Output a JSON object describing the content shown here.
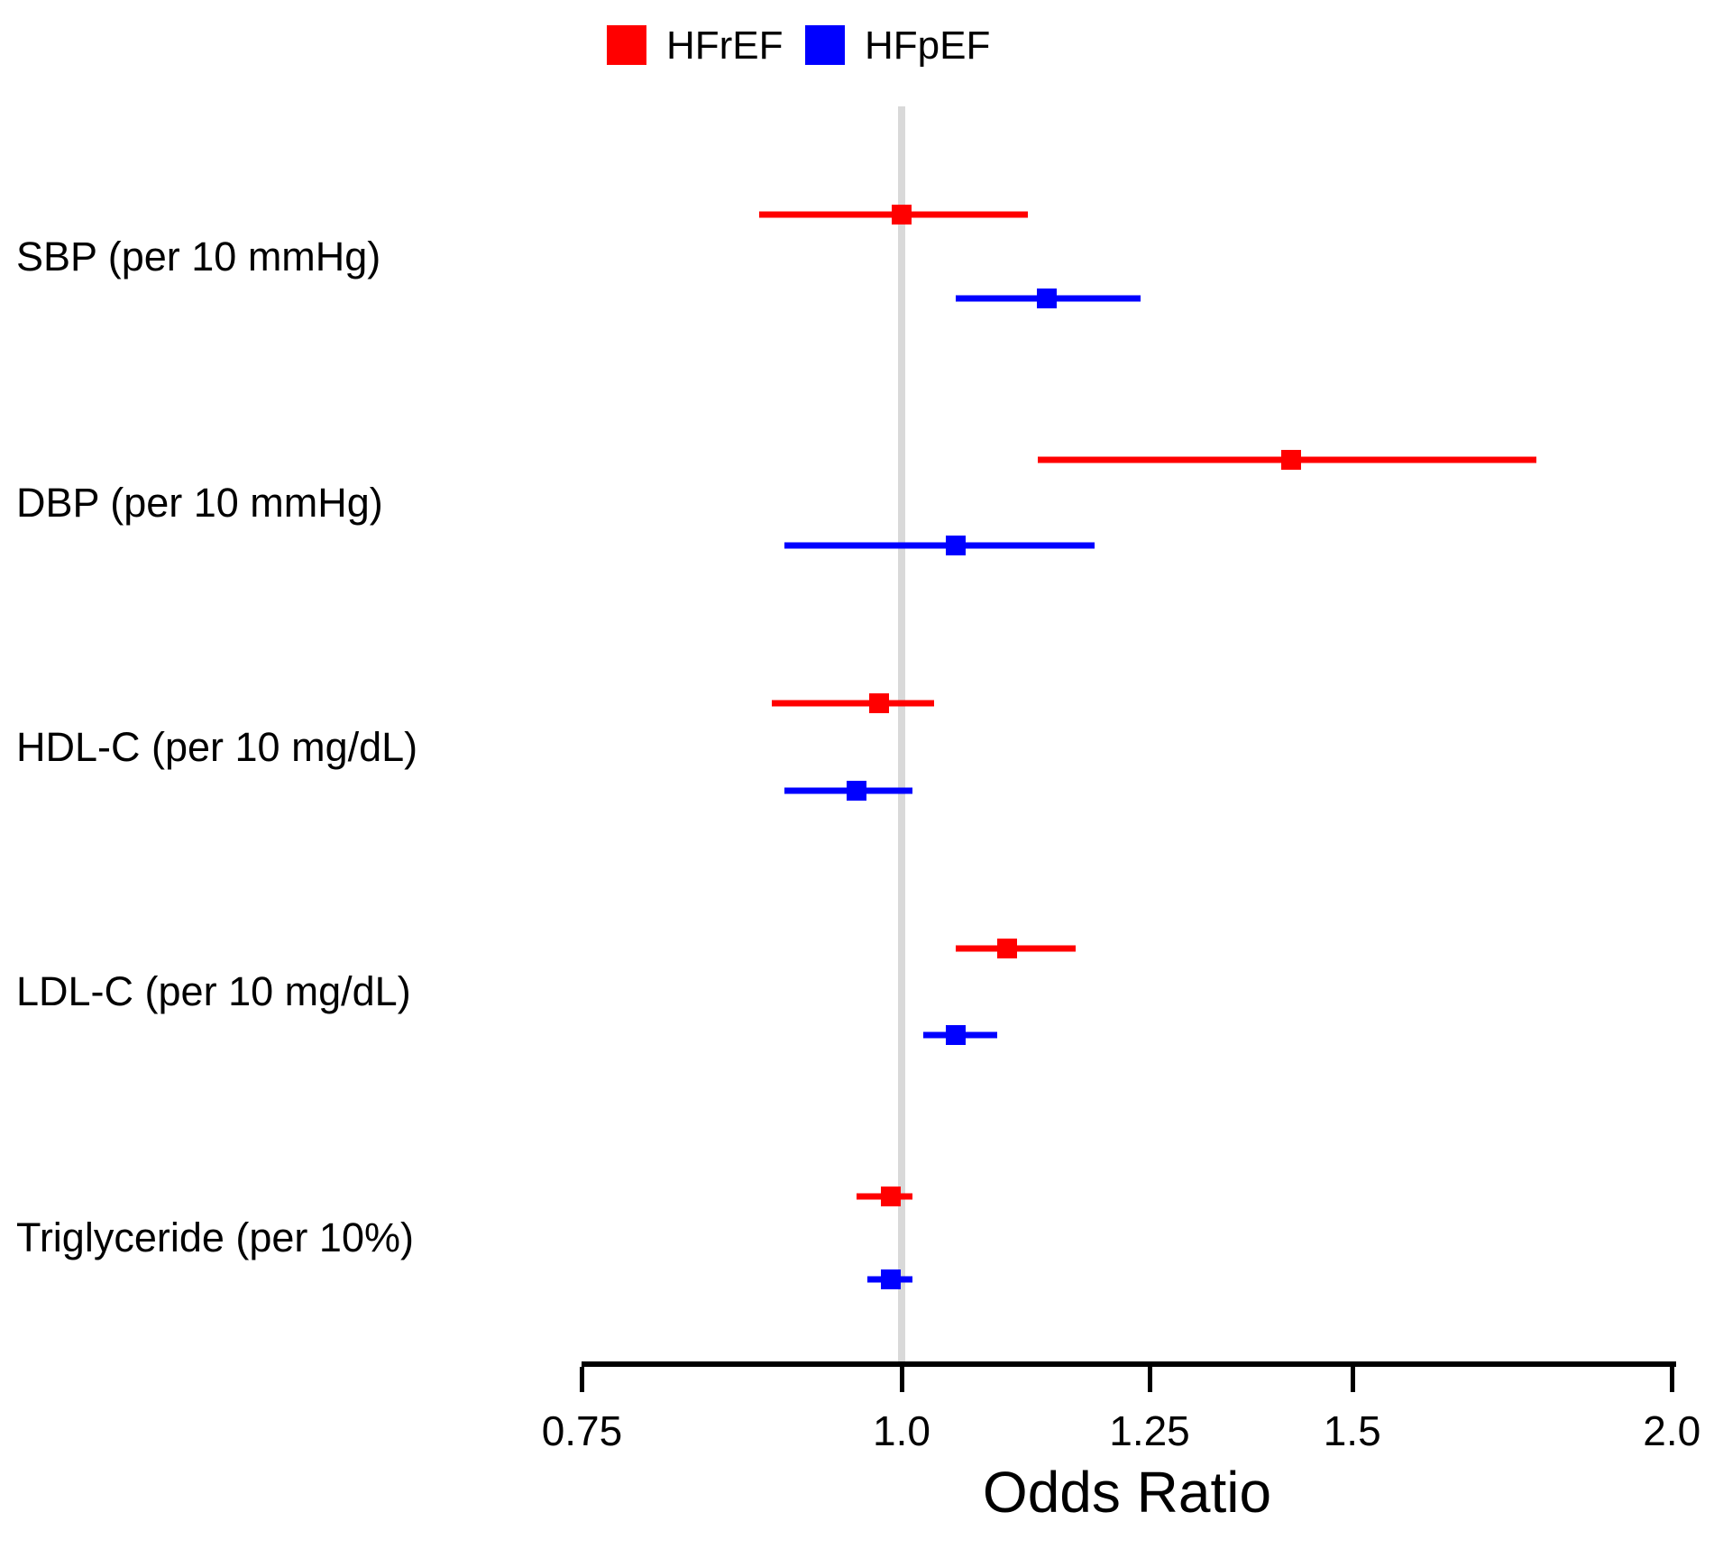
{
  "chart_data": {
    "type": "forest",
    "title": "",
    "xlabel": "Odds Ratio",
    "x_scale": "log",
    "xlim": [
      0.75,
      2.0
    ],
    "x_ticks": [
      0.75,
      1.0,
      1.25,
      1.5,
      2.0
    ],
    "x_tick_labels": [
      "0.75",
      "1.0",
      "1.25",
      "1.5",
      "2.0"
    ],
    "reference_line": 1.0,
    "grid": "off",
    "legend_position": "top-center",
    "legend": [
      {
        "name": "HFrEF",
        "color": "#FF0000"
      },
      {
        "name": "HFpEF",
        "color": "#0000FF"
      }
    ],
    "categories": [
      "SBP (per 10 mmHg)",
      "DBP (per 10 mmHg)",
      "HDL-C (per 10 mg/dL)",
      "LDL-C (per 10 mg/dL)",
      "Triglyceride (per 10%)"
    ],
    "series": [
      {
        "name": "HFrEF",
        "color": "#FF0000",
        "values": [
          {
            "or": 1.0,
            "ci_low": 0.88,
            "ci_high": 1.12
          },
          {
            "or": 1.42,
            "ci_low": 1.13,
            "ci_high": 1.77
          },
          {
            "or": 0.98,
            "ci_low": 0.89,
            "ci_high": 1.03
          },
          {
            "or": 1.1,
            "ci_low": 1.05,
            "ci_high": 1.17
          },
          {
            "or": 0.99,
            "ci_low": 0.96,
            "ci_high": 1.01
          }
        ]
      },
      {
        "name": "HFpEF",
        "color": "#0000FF",
        "values": [
          {
            "or": 1.14,
            "ci_low": 1.05,
            "ci_high": 1.24
          },
          {
            "or": 1.05,
            "ci_low": 0.9,
            "ci_high": 1.19
          },
          {
            "or": 0.96,
            "ci_low": 0.9,
            "ci_high": 1.01
          },
          {
            "or": 1.05,
            "ci_low": 1.02,
            "ci_high": 1.09
          },
          {
            "or": 0.99,
            "ci_low": 0.97,
            "ci_high": 1.01
          }
        ]
      }
    ]
  },
  "colors": {
    "hfref": "#FF0000",
    "hfpef": "#0000FF",
    "reference_line": "#D9D9D9",
    "axis": "#000000",
    "text": "#000000"
  }
}
